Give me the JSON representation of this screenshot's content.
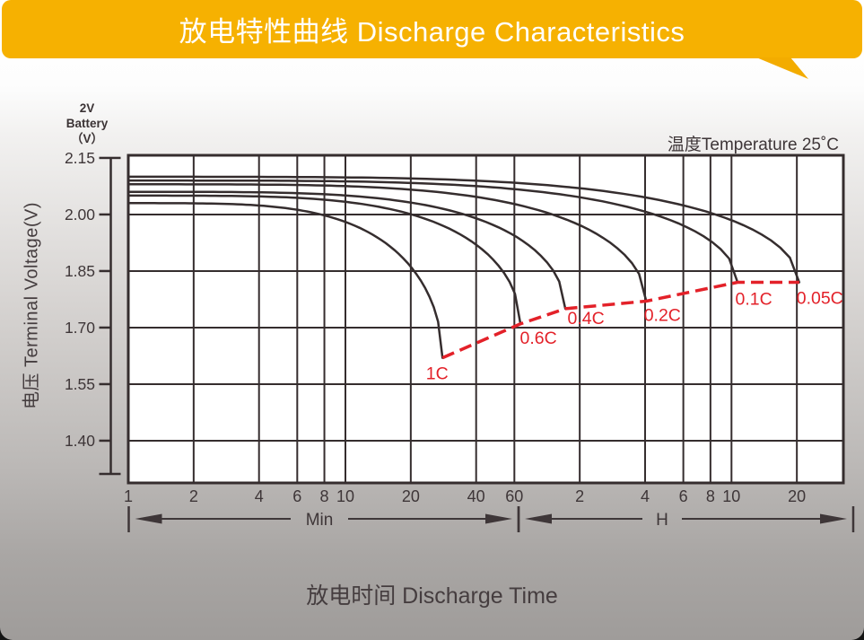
{
  "header": {
    "title": "放电特性曲线 Discharge Characteristics"
  },
  "chart": {
    "unit_label_lines": [
      "2V",
      "Battery",
      "（V）"
    ],
    "temperature_note": "温度Temperature 25˚C",
    "y_axis_title": "电压 Terminal Voltage(V)",
    "x_axis_title": "放电时间 Discharge Time",
    "x_sections": [
      {
        "label": "Min"
      },
      {
        "label": "H"
      }
    ]
  },
  "colors": {
    "banner_orange": "#f6b101",
    "banner_tail_orange": "#f3ac00",
    "ink": "#352d2e",
    "text": "#3e3638",
    "cutoff_red": "#e32129",
    "plot_fill": "#ffffff"
  },
  "chart_data": {
    "type": "line",
    "title": "放电特性曲线 Discharge Characteristics",
    "xlabel": "放电时间 Discharge Time",
    "ylabel": "电压 Terminal Voltage(V)",
    "annotation": "温度Temperature 25˚C",
    "x_scale": "log(time in minutes), Min section 1-60, H section 1h-32h",
    "x_ticks_min": [
      1,
      2,
      4,
      6,
      8,
      10,
      20,
      40,
      60
    ],
    "x_ticks_h": [
      2,
      4,
      6,
      8,
      10,
      20
    ],
    "y_tick_labels": [
      "2.15",
      "2.00",
      "1.85",
      "1.70",
      "1.55",
      "1.40"
    ],
    "ylim": [
      1.288,
      2.157
    ],
    "xlim_minutes": [
      1,
      1965
    ],
    "grid": true,
    "knee_sharpness": 4,
    "series": [
      {
        "name": "0.05C",
        "v_start": 2.1,
        "v_end": 1.82,
        "t_end_min": 1230,
        "label_dx": 23,
        "label_dy": 17
      },
      {
        "name": "0.1C",
        "v_start": 2.09,
        "v_end": 1.82,
        "t_end_min": 640,
        "label_dx": 18,
        "label_dy": 18
      },
      {
        "name": "0.2C",
        "v_start": 2.08,
        "v_end": 1.77,
        "t_end_min": 243,
        "label_dx": 18,
        "label_dy": 15
      },
      {
        "name": "0.4C",
        "v_start": 2.06,
        "v_end": 1.75,
        "t_end_min": 103,
        "label_dx": 23,
        "label_dy": 10
      },
      {
        "name": "0.6C",
        "v_start": 2.05,
        "v_end": 1.71,
        "t_end_min": 64,
        "label_dx": 20,
        "label_dy": 15
      },
      {
        "name": "1C",
        "v_start": 2.03,
        "v_end": 1.62,
        "t_end_min": 28,
        "label_dx": -6,
        "label_dy": 17
      }
    ],
    "cutoff_line": {
      "style": "dashed",
      "color": "#e32129",
      "connects": "discharge end points of all series"
    }
  }
}
